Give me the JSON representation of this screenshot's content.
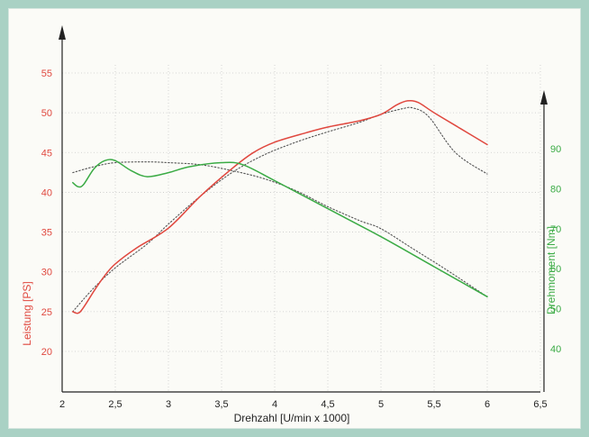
{
  "chart_data": {
    "type": "line",
    "xlabel": "Drehzahl [U/min x 1000]",
    "ylabel_left": "Leistung [PS]",
    "ylabel_right": "Drehmoment [Nm]",
    "x_ticks": [
      "2",
      "2,5",
      "3",
      "3,5",
      "4",
      "4,5",
      "5",
      "5,5",
      "6",
      "6,5"
    ],
    "y_left_ticks": [
      "20",
      "25",
      "30",
      "35",
      "40",
      "45",
      "50",
      "55"
    ],
    "y_right_ticks": [
      "40",
      "50",
      "60",
      "70",
      "80",
      "90"
    ],
    "xlim": [
      2,
      6.5
    ],
    "ylim_left": [
      15,
      60
    ],
    "ylim_right": [
      30,
      100
    ],
    "grid": true,
    "colors": {
      "power": "#e0483f",
      "torque": "#3bab45",
      "reference": "#555555"
    },
    "series": [
      {
        "axis": "left",
        "style": "solid",
        "color": "#e0483f",
        "x": [
          2.1,
          2.15,
          2.2,
          2.3,
          2.4,
          2.5,
          2.7,
          3.0,
          3.3,
          3.6,
          3.8,
          4.0,
          4.3,
          4.5,
          4.8,
          5.0,
          5.15,
          5.25,
          5.35,
          5.5,
          5.75,
          6.0
        ],
        "y": [
          25,
          24.8,
          25.5,
          27.6,
          29.5,
          31,
          33,
          35.5,
          39.5,
          43,
          45,
          46.3,
          47.5,
          48.2,
          49,
          49.8,
          51,
          51.5,
          51.3,
          50,
          48,
          46
        ]
      },
      {
        "axis": "right",
        "style": "solid",
        "color": "#3bab45",
        "x": [
          2.1,
          2.15,
          2.2,
          2.3,
          2.4,
          2.5,
          2.65,
          2.8,
          3.0,
          3.2,
          3.5,
          3.7,
          4.0,
          4.5,
          5.0,
          5.5,
          6.0
        ],
        "y": [
          81.5,
          80.5,
          81,
          85,
          87,
          87,
          84.5,
          83,
          84,
          85.5,
          86.5,
          86,
          82,
          75,
          68,
          60.5,
          53
        ]
      },
      {
        "axis": "left",
        "style": "dotted",
        "color": "#555555",
        "x": [
          2.1,
          2.3,
          2.5,
          2.8,
          3.0,
          3.3,
          3.6,
          3.9,
          4.2,
          4.5,
          4.8,
          5.0,
          5.2,
          5.3,
          5.45,
          5.7,
          6.0
        ],
        "y": [
          25,
          28,
          30.5,
          33.5,
          36,
          39.5,
          42.5,
          44.7,
          46.3,
          47.6,
          48.8,
          49.8,
          50.5,
          50.6,
          49.5,
          45,
          42.3
        ]
      },
      {
        "axis": "right",
        "style": "dotted",
        "color": "#555555",
        "x": [
          2.1,
          2.3,
          2.5,
          2.8,
          3.0,
          3.3,
          3.6,
          3.9,
          4.2,
          4.5,
          4.8,
          5.0,
          5.3,
          5.6,
          6.0
        ],
        "y": [
          84,
          85.5,
          86.5,
          86.7,
          86.5,
          86,
          84.5,
          82.5,
          79.5,
          75.5,
          72,
          70,
          65,
          60,
          53
        ]
      }
    ]
  }
}
